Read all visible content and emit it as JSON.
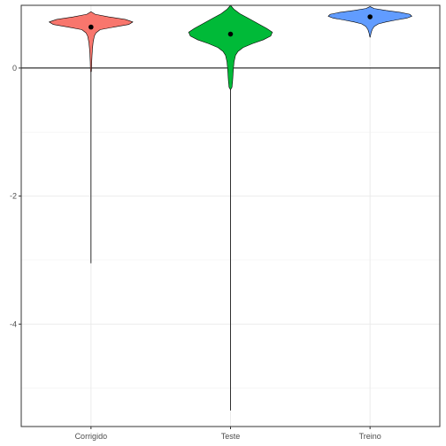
{
  "chart_data": {
    "type": "violin",
    "title": "",
    "xlabel": "",
    "ylabel": "",
    "categories": [
      "Corrigido",
      "Teste",
      "Treino"
    ],
    "ylim": [
      -5.6,
      0.98
    ],
    "yticks": [
      -4,
      -2,
      0
    ],
    "reference_line_y": 0,
    "grid": true,
    "legend": "none",
    "series": [
      {
        "category": "Corrigido",
        "color": "#F8766D",
        "mean": 0.64,
        "min": -3.05,
        "max": 0.88,
        "density": [
          [
            0.88,
            0.0
          ],
          [
            0.84,
            0.1
          ],
          [
            0.8,
            0.42
          ],
          [
            0.76,
            0.82
          ],
          [
            0.72,
            1.0
          ],
          [
            0.68,
            0.9
          ],
          [
            0.64,
            0.55
          ],
          [
            0.6,
            0.22
          ],
          [
            0.55,
            0.12
          ],
          [
            0.5,
            0.08
          ],
          [
            0.4,
            0.05
          ],
          [
            0.3,
            0.035
          ],
          [
            0.2,
            0.025
          ],
          [
            0.1,
            0.018
          ],
          [
            0.0,
            0.014
          ],
          [
            -0.05,
            0.01
          ],
          [
            -0.07,
            0.0
          ]
        ],
        "tail": [
          -3.05,
          -0.07
        ]
      },
      {
        "category": "Teste",
        "color": "#00BA38",
        "mean": 0.53,
        "min": -5.35,
        "max": 0.98,
        "density": [
          [
            0.98,
            0.0
          ],
          [
            0.92,
            0.08
          ],
          [
            0.85,
            0.22
          ],
          [
            0.78,
            0.42
          ],
          [
            0.7,
            0.64
          ],
          [
            0.62,
            0.86
          ],
          [
            0.56,
            1.0
          ],
          [
            0.5,
            0.96
          ],
          [
            0.44,
            0.78
          ],
          [
            0.38,
            0.52
          ],
          [
            0.32,
            0.3
          ],
          [
            0.26,
            0.18
          ],
          [
            0.2,
            0.12
          ],
          [
            0.1,
            0.085
          ],
          [
            0.0,
            0.07
          ],
          [
            -0.1,
            0.06
          ],
          [
            -0.2,
            0.05
          ],
          [
            -0.3,
            0.035
          ],
          [
            -0.34,
            0.0
          ]
        ],
        "tail": [
          -5.35,
          -0.34
        ]
      },
      {
        "category": "Treino",
        "color": "#619CFF",
        "mean": 0.8,
        "min": 0.48,
        "max": 0.96,
        "density": [
          [
            0.96,
            0.0
          ],
          [
            0.93,
            0.1
          ],
          [
            0.9,
            0.38
          ],
          [
            0.87,
            0.72
          ],
          [
            0.84,
            0.95
          ],
          [
            0.81,
            1.0
          ],
          [
            0.78,
            0.88
          ],
          [
            0.75,
            0.62
          ],
          [
            0.72,
            0.38
          ],
          [
            0.69,
            0.2
          ],
          [
            0.65,
            0.1
          ],
          [
            0.6,
            0.05
          ],
          [
            0.55,
            0.025
          ],
          [
            0.5,
            0.01
          ],
          [
            0.48,
            0.0
          ]
        ],
        "tail": [
          0.48,
          0.48
        ]
      }
    ]
  }
}
